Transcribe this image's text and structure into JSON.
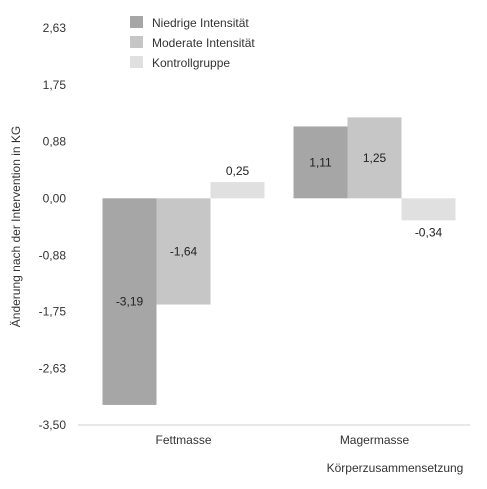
{
  "chart_data": {
    "type": "bar",
    "title": "",
    "xlabel": "Körperzusammensetzung",
    "ylabel": "Änderung nach der Intervention in KG",
    "categories": [
      "Fettmasse",
      "Magermasse"
    ],
    "series": [
      {
        "name": "Niedrige Intensität",
        "values": [
          -3.19,
          1.11
        ],
        "labels": [
          "-3,19",
          "1,11"
        ],
        "color": "#a6a6a6"
      },
      {
        "name": "Moderate Intensität",
        "values": [
          -1.64,
          1.25
        ],
        "labels": [
          "-1,64",
          "1,25"
        ],
        "color": "#c6c6c6"
      },
      {
        "name": "Kontrollgruppe",
        "values": [
          0.25,
          -0.34
        ],
        "labels": [
          "0,25",
          "-0,34"
        ],
        "color": "#e0e0e0"
      }
    ],
    "yticks": [
      2.63,
      1.75,
      0.88,
      0.0,
      -0.88,
      -1.75,
      -2.63,
      -3.5
    ],
    "ytick_labels": [
      "2,63",
      "1,75",
      "0,88",
      "0,00",
      "-0,88",
      "-1,75",
      "-2,63",
      "-3,50"
    ],
    "ylim": [
      -3.5,
      2.63
    ],
    "grid": false,
    "legend_position": "top-left"
  }
}
